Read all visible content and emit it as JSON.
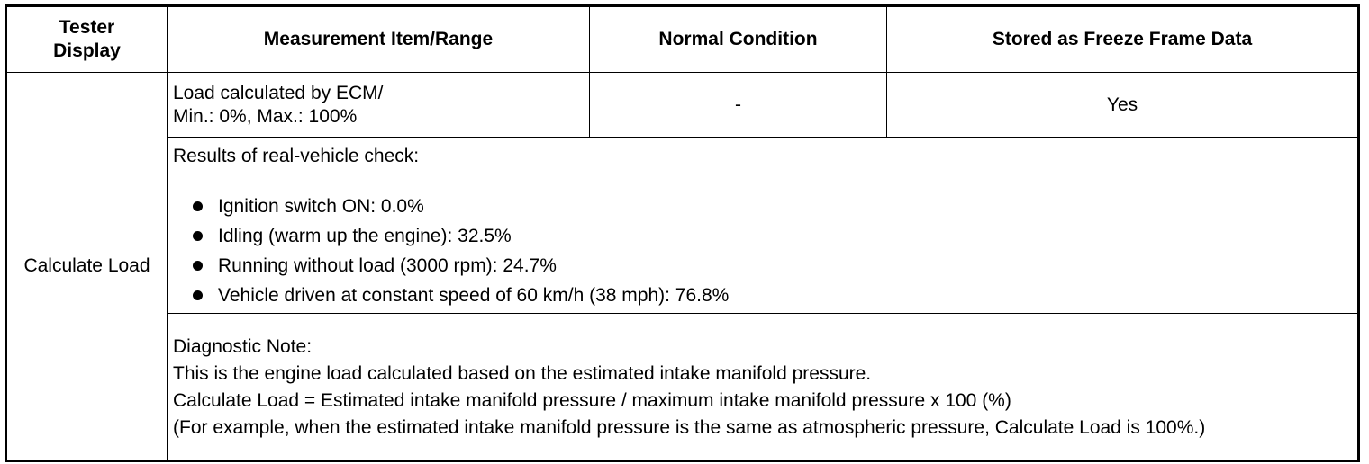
{
  "table": {
    "header": [
      "Tester\nDisplay",
      "Measurement Item/Range",
      "Normal Condition",
      "Stored as Freeze Frame Data"
    ],
    "display": "Calculate Load",
    "measurement": [
      "Load calculated by ECM/",
      "Min.: 0%, Max.: 100%"
    ],
    "normal": "-",
    "freeze": "Yes",
    "check": {
      "title": "Results of real-vehicle check:",
      "items": [
        "Ignition switch ON: 0.0%",
        "Idling (warm up the engine): 32.5%",
        "Running without load (3000 rpm): 24.7%",
        "Vehicle driven at constant speed of 60 km/h (38 mph): 76.8%"
      ]
    },
    "note": {
      "title": "Diagnostic Note:",
      "lines": [
        "This is the engine load calculated based on the estimated intake manifold pressure.",
        "Calculate Load = Estimated intake manifold pressure / maximum intake manifold pressure x 100 (%)",
        "(For example, when the estimated intake manifold pressure is the same as atmospheric pressure, Calculate Load is 100%.)"
      ]
    }
  }
}
